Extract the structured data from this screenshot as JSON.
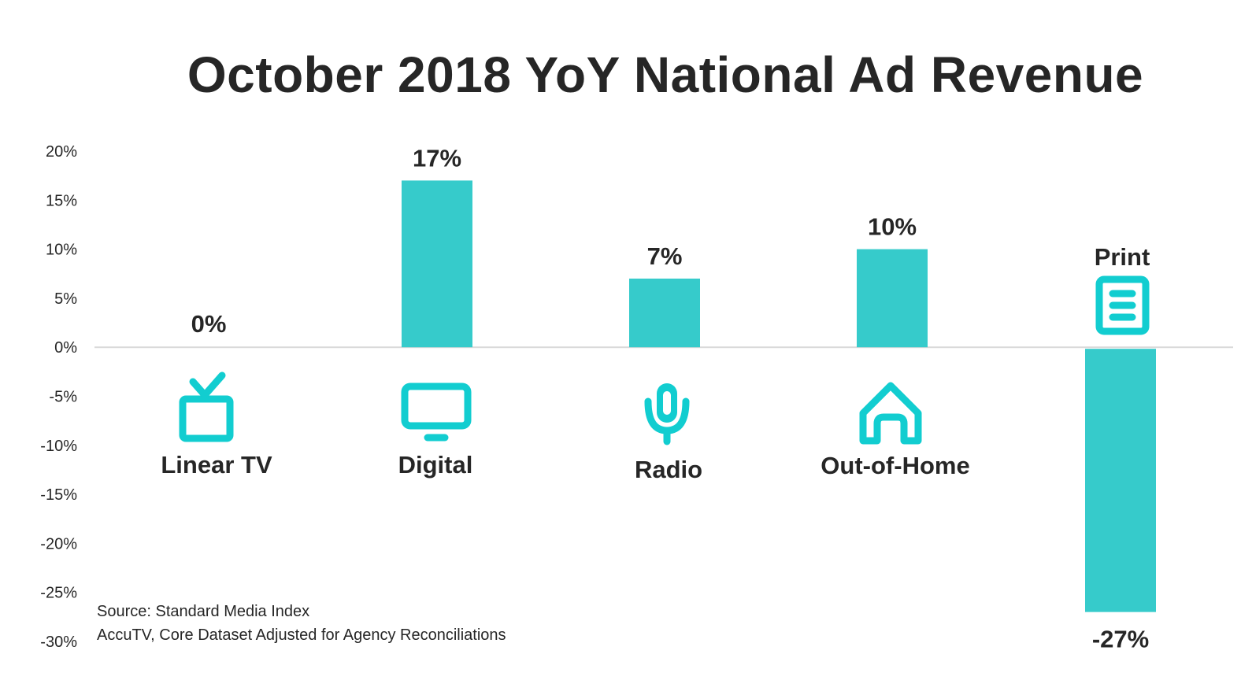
{
  "chart_data": {
    "type": "bar",
    "title": "October 2018 YoY National Ad Revenue",
    "categories": [
      "Linear TV",
      "Digital",
      "Radio",
      "Out-of-Home",
      "Print"
    ],
    "values": [
      0,
      17,
      7,
      10,
      -27
    ],
    "data_labels": [
      "0%",
      "17%",
      "7%",
      "10%",
      "-27%"
    ],
    "icons": [
      "tv-icon",
      "monitor-icon",
      "microphone-icon",
      "house-icon",
      "document-icon"
    ],
    "xlabel": "",
    "ylabel": "",
    "ylim": [
      -30,
      20
    ],
    "yticks": [
      20,
      15,
      10,
      5,
      0,
      -5,
      -10,
      -15,
      -20,
      -25,
      -30
    ],
    "ytick_labels": [
      "20%",
      "15%",
      "10%",
      "5%",
      "0%",
      "-5%",
      "-10%",
      "-15%",
      "-20%",
      "-25%",
      "-30%"
    ],
    "grid": false,
    "legend": "none",
    "colors": {
      "bar": "#36CBCB",
      "icon": "#12CDD0",
      "zero_line": "#D9D9D9",
      "text": "#262626"
    }
  },
  "source": {
    "line1": "Source: Standard Media Index",
    "line2": "AccuTV, Core Dataset Adjusted for Agency Reconciliations"
  }
}
